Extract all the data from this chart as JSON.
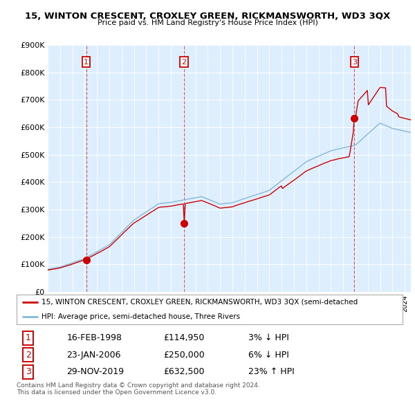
{
  "title": "15, WINTON CRESCENT, CROXLEY GREEN, RICKMANSWORTH, WD3 3QX",
  "subtitle": "Price paid vs. HM Land Registry's House Price Index (HPI)",
  "ylabel_values": [
    "£0",
    "£100K",
    "£200K",
    "£300K",
    "£400K",
    "£500K",
    "£600K",
    "£700K",
    "£800K",
    "£900K"
  ],
  "ylim": [
    0,
    900000
  ],
  "xlim_start": 1995.0,
  "xlim_end": 2024.5,
  "sale_dates": [
    1998.12,
    2006.07,
    2019.92
  ],
  "sale_prices": [
    114950,
    250000,
    632500
  ],
  "sale_labels": [
    "1",
    "2",
    "3"
  ],
  "hpi_color": "#85b8d8",
  "price_color": "#cc0000",
  "plot_bg_color": "#ddeeff",
  "legend_label_red": "15, WINTON CRESCENT, CROXLEY GREEN, RICKMANSWORTH, WD3 3QX (semi-detached",
  "legend_label_blue": "HPI: Average price, semi-detached house, Three Rivers",
  "table_rows": [
    [
      "1",
      "16-FEB-1998",
      "£114,950",
      "3% ↓ HPI"
    ],
    [
      "2",
      "23-JAN-2006",
      "£250,000",
      "6% ↓ HPI"
    ],
    [
      "3",
      "29-NOV-2019",
      "£632,500",
      "23% ↑ HPI"
    ]
  ],
  "footer_text": "Contains HM Land Registry data © Crown copyright and database right 2024.\nThis data is licensed under the Open Government Licence v3.0.",
  "dashed_line_color": "#cc0000",
  "dashed_line_alpha": 0.6
}
